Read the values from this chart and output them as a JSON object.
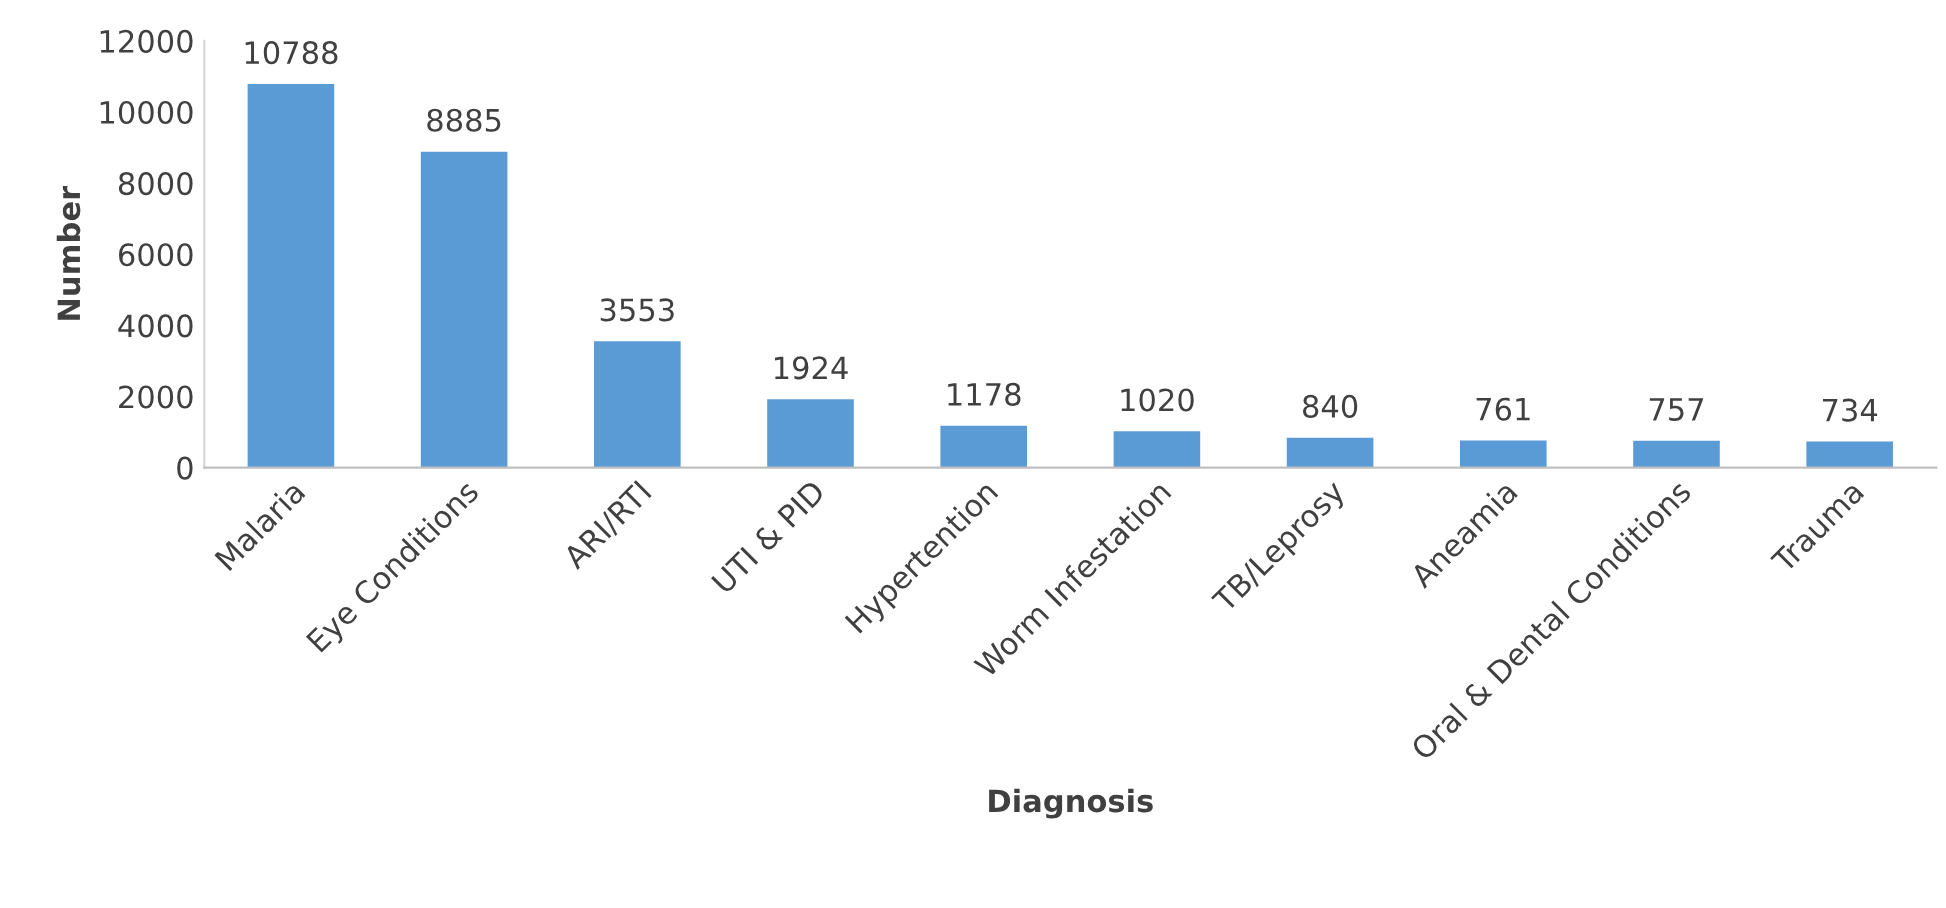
{
  "chart_data": {
    "type": "bar",
    "xlabel": "Diagnosis",
    "ylabel": "Number",
    "categories": [
      "Malaria",
      "Eye Conditions",
      "ARI/RTI",
      "UTI & PID",
      "Hypertention",
      "Worm Infestation",
      "TB/Leprosy",
      "Aneamia",
      "Oral & Dental Conditions",
      "Trauma"
    ],
    "values": [
      10788,
      8885,
      3553,
      1924,
      1178,
      1020,
      840,
      761,
      757,
      734
    ],
    "color": "#5b9bd5",
    "ylim": [
      0,
      12000
    ],
    "yticks": [
      0,
      2000,
      4000,
      6000,
      8000,
      10000,
      12000
    ],
    "grid": false,
    "data_labels": true
  }
}
